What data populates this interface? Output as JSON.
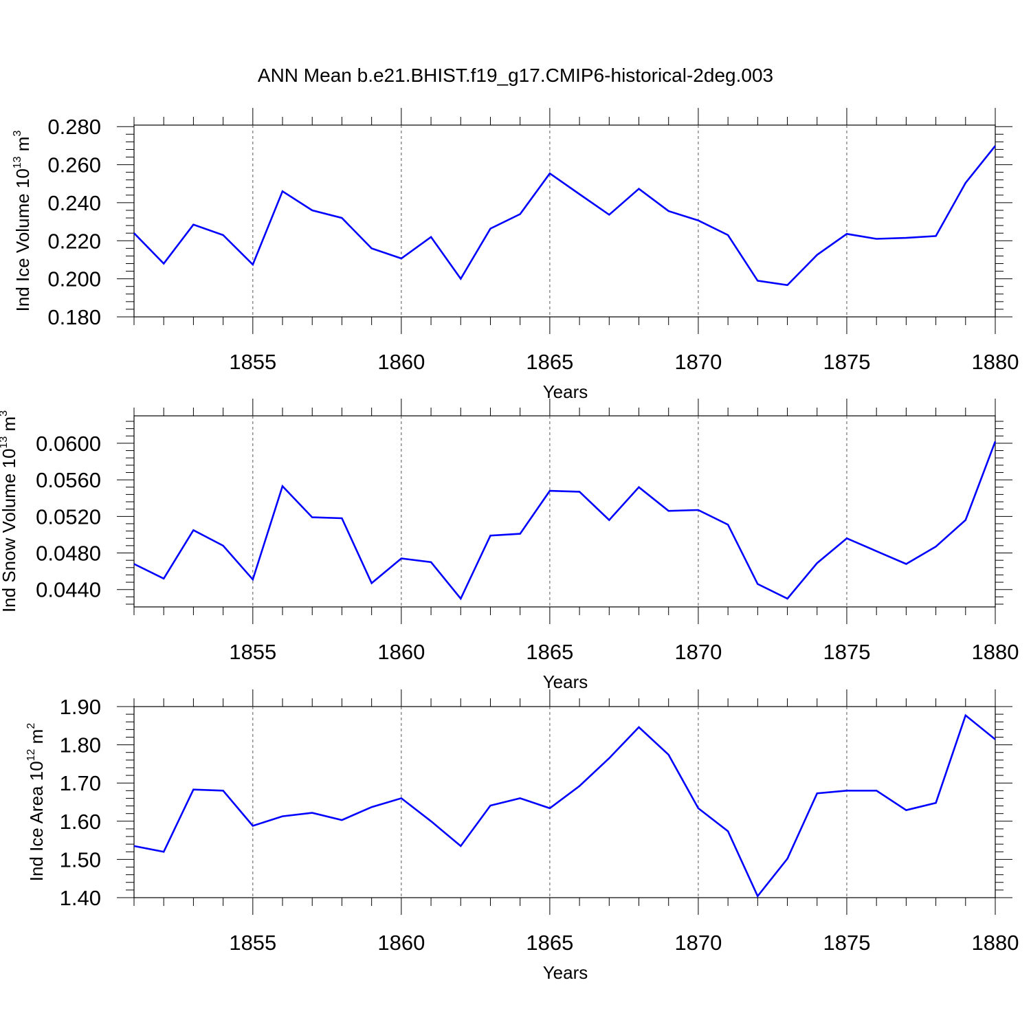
{
  "title": "ANN Mean b.e21.BHIST.f19_g17.CMIP6-historical-2deg.003",
  "line_color": "#0000ff",
  "chart_data": [
    {
      "type": "line",
      "ylabel": {
        "text": "Ind Ice Volume 10",
        "sup": "13",
        "unit": " m",
        "unit_sup": "3"
      },
      "xlabel": "Years",
      "xlim": [
        1851,
        1880
      ],
      "ylim": [
        0.18,
        0.2808
      ],
      "yticks": [
        0.18,
        0.2,
        0.22,
        0.24,
        0.26,
        0.28
      ],
      "ytick_labels": [
        "0.180",
        "0.200",
        "0.220",
        "0.240",
        "0.260",
        "0.280"
      ],
      "xticks": [
        1855,
        1860,
        1865,
        1870,
        1875,
        1880
      ],
      "xtick_labels": [
        "1855",
        "1860",
        "1865",
        "1870",
        "1875",
        "1880"
      ],
      "grid": "dashed vertical lines at major x ticks",
      "series": [
        {
          "x": [
            1851,
            1852,
            1853,
            1854,
            1855,
            1856,
            1857,
            1858,
            1859,
            1860,
            1861,
            1862,
            1863,
            1864,
            1865,
            1866,
            1867,
            1868,
            1869,
            1870,
            1871,
            1872,
            1873,
            1874,
            1875,
            1876,
            1877,
            1878,
            1879,
            1880
          ],
          "values": [
            0.224,
            0.208,
            0.2285,
            0.223,
            0.2075,
            0.246,
            0.236,
            0.232,
            0.216,
            0.2107,
            0.222,
            0.2,
            0.2264,
            0.234,
            0.2554,
            0.2445,
            0.2337,
            0.2473,
            0.2356,
            0.2307,
            0.223,
            0.199,
            0.1967,
            0.2126,
            0.2236,
            0.221,
            0.2215,
            0.2225,
            0.2504,
            0.2699
          ]
        }
      ]
    },
    {
      "type": "line",
      "ylabel": {
        "text": "Ind Snow Volume 10",
        "sup": "13",
        "unit": " m",
        "unit_sup": "3"
      },
      "xlabel": "Years",
      "xlim": [
        1851,
        1880
      ],
      "ylim": [
        0.0421,
        0.063
      ],
      "yticks": [
        0.044,
        0.048,
        0.052,
        0.056,
        0.06
      ],
      "ytick_labels": [
        "0.0440",
        "0.0480",
        "0.0520",
        "0.0560",
        "0.0600"
      ],
      "xticks": [
        1855,
        1860,
        1865,
        1870,
        1875,
        1880
      ],
      "xtick_labels": [
        "1855",
        "1860",
        "1865",
        "1870",
        "1875",
        "1880"
      ],
      "grid": "dashed vertical lines at major x ticks",
      "series": [
        {
          "x": [
            1851,
            1852,
            1853,
            1854,
            1855,
            1856,
            1857,
            1858,
            1859,
            1860,
            1861,
            1862,
            1863,
            1864,
            1865,
            1866,
            1867,
            1868,
            1869,
            1870,
            1871,
            1872,
            1873,
            1874,
            1875,
            1876,
            1877,
            1878,
            1879,
            1880
          ],
          "values": [
            0.0468,
            0.0452,
            0.0505,
            0.0488,
            0.0451,
            0.0553,
            0.0519,
            0.0518,
            0.0447,
            0.0474,
            0.047,
            0.043,
            0.0499,
            0.0501,
            0.0548,
            0.0547,
            0.0516,
            0.0552,
            0.0526,
            0.0527,
            0.0511,
            0.0446,
            0.043,
            0.0469,
            0.0496,
            0.0482,
            0.0468,
            0.0487,
            0.0516,
            0.0602
          ]
        }
      ]
    },
    {
      "type": "line",
      "ylabel": {
        "text": "Ind Ice Area 10",
        "sup": "12",
        "unit": " m",
        "unit_sup": "2"
      },
      "xlabel": "Years",
      "xlim": [
        1851,
        1880
      ],
      "ylim": [
        1.4,
        1.9
      ],
      "yticks": [
        1.4,
        1.5,
        1.6,
        1.7,
        1.8,
        1.9
      ],
      "ytick_labels": [
        "1.40",
        "1.50",
        "1.60",
        "1.70",
        "1.80",
        "1.90"
      ],
      "xticks": [
        1855,
        1860,
        1865,
        1870,
        1875,
        1880
      ],
      "xtick_labels": [
        "1855",
        "1860",
        "1865",
        "1870",
        "1875",
        "1880"
      ],
      "grid": "dashed vertical lines at major x ticks",
      "series": [
        {
          "x": [
            1851,
            1852,
            1853,
            1854,
            1855,
            1856,
            1857,
            1858,
            1859,
            1860,
            1861,
            1862,
            1863,
            1864,
            1865,
            1866,
            1867,
            1868,
            1869,
            1870,
            1871,
            1872,
            1873,
            1874,
            1875,
            1876,
            1877,
            1878,
            1879,
            1880
          ],
          "values": [
            1.535,
            1.52,
            1.683,
            1.68,
            1.588,
            1.613,
            1.622,
            1.603,
            1.637,
            1.66,
            1.6,
            1.535,
            1.641,
            1.66,
            1.634,
            1.692,
            1.765,
            1.846,
            1.774,
            1.634,
            1.574,
            1.404,
            1.502,
            1.673,
            1.68,
            1.68,
            1.629,
            1.648,
            1.877,
            1.814
          ]
        }
      ]
    }
  ]
}
